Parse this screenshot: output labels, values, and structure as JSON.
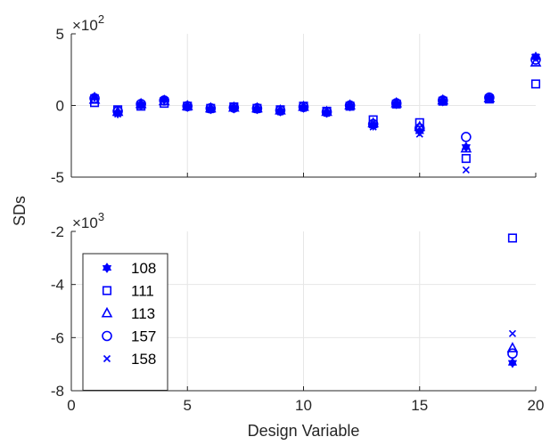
{
  "chart_data": {
    "type": "scatter",
    "xlabel": "Design Variable",
    "ylabel": "SDs",
    "xlim": [
      0,
      20
    ],
    "xticks": [
      0,
      5,
      10,
      15,
      20
    ],
    "color": "#0000ff",
    "grid": true,
    "legend": {
      "placement": "bottom-left of lower panel",
      "entries": [
        {
          "label": "108",
          "marker": "hexagram"
        },
        {
          "label": "111",
          "marker": "square"
        },
        {
          "label": "113",
          "marker": "triangle"
        },
        {
          "label": "157",
          "marker": "circle"
        },
        {
          "label": "158",
          "marker": "x"
        }
      ]
    },
    "panels": [
      {
        "id": "top",
        "multiplier_label": "×10",
        "multiplier_exponent": "2",
        "ylim": [
          -5,
          5
        ],
        "yticks": [
          "-5",
          "0",
          "5"
        ],
        "yticks_values": [
          -5,
          0,
          5
        ],
        "x": [
          1,
          2,
          3,
          4,
          5,
          6,
          7,
          8,
          9,
          10,
          11,
          12,
          13,
          14,
          15,
          16,
          17,
          18,
          20
        ],
        "series": [
          {
            "name": "108",
            "marker": "hexagram",
            "values": [
              0.6,
              -0.55,
              0.05,
              0.4,
              -0.1,
              -0.25,
              -0.2,
              -0.25,
              -0.4,
              -0.15,
              -0.5,
              -0.05,
              -1.4,
              0.1,
              -1.8,
              0.3,
              -2.9,
              0.55,
              3.4
            ]
          },
          {
            "name": "111",
            "marker": "square",
            "values": [
              0.2,
              -0.3,
              -0.05,
              0.15,
              -0.05,
              -0.2,
              -0.1,
              -0.2,
              -0.3,
              -0.05,
              -0.4,
              -0.05,
              -1.0,
              0.1,
              -1.2,
              0.3,
              -3.7,
              0.45,
              1.5
            ]
          },
          {
            "name": "113",
            "marker": "triangle",
            "values": [
              0.4,
              -0.45,
              0.1,
              0.3,
              -0.05,
              -0.2,
              -0.15,
              -0.2,
              -0.35,
              -0.1,
              -0.45,
              0.0,
              -1.25,
              0.15,
              -1.5,
              0.35,
              -3.0,
              0.5,
              3.0
            ]
          },
          {
            "name": "157",
            "marker": "circle",
            "values": [
              0.5,
              -0.4,
              0.1,
              0.35,
              -0.05,
              -0.2,
              -0.15,
              -0.2,
              -0.35,
              -0.1,
              -0.45,
              0.0,
              -1.3,
              0.15,
              -1.6,
              0.35,
              -2.2,
              0.55,
              3.2
            ]
          },
          {
            "name": "158",
            "marker": "x",
            "values": [
              0.55,
              -0.6,
              0.0,
              0.4,
              -0.1,
              -0.3,
              -0.2,
              -0.3,
              -0.45,
              -0.2,
              -0.55,
              -0.1,
              -1.5,
              0.05,
              -2.0,
              0.25,
              -4.5,
              0.5,
              3.4
            ]
          }
        ]
      },
      {
        "id": "bottom",
        "multiplier_label": "×10",
        "multiplier_exponent": "3",
        "ylim": [
          -8,
          -2
        ],
        "yticks": [
          "-8",
          "-6",
          "-4",
          "-2"
        ],
        "yticks_values": [
          -8,
          -6,
          -4,
          -2
        ],
        "x": [
          19
        ],
        "series": [
          {
            "name": "108",
            "marker": "hexagram",
            "values": [
              -6.95
            ]
          },
          {
            "name": "111",
            "marker": "square",
            "values": [
              -2.25
            ]
          },
          {
            "name": "113",
            "marker": "triangle",
            "values": [
              -6.4
            ]
          },
          {
            "name": "157",
            "marker": "circle",
            "values": [
              -6.6
            ]
          },
          {
            "name": "158",
            "marker": "x",
            "values": [
              -5.85
            ]
          }
        ]
      }
    ]
  }
}
